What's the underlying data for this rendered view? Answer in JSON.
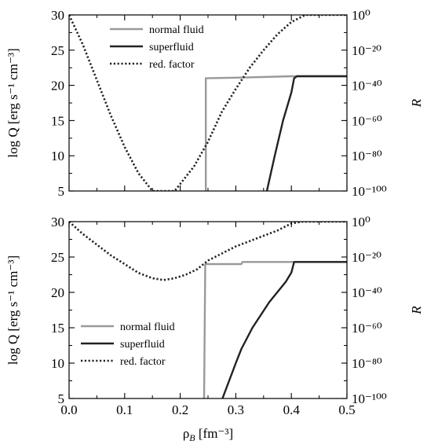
{
  "chart_data": [
    {
      "type": "line",
      "panel": "top",
      "xlabel": "",
      "ylabel": "log Q [erg s⁻¹ cm⁻³]",
      "y2label": "R",
      "xlim": [
        0.0,
        0.5
      ],
      "ylim": [
        5,
        30
      ],
      "y2lim_log10": [
        -100,
        0
      ],
      "yticks": [
        5,
        10,
        15,
        20,
        25,
        30
      ],
      "y2ticks_exponents": [
        -100,
        -80,
        -60,
        -40,
        -20,
        0
      ],
      "xticks": [
        0.0,
        0.1,
        0.2,
        0.3,
        0.4,
        0.5
      ],
      "grid": false,
      "legend_position": "top-center",
      "series": [
        {
          "name": "normal fluid",
          "color": "#999999",
          "style": "solid",
          "axis": "left",
          "x": [
            0.246,
            0.246,
            0.31,
            0.4,
            0.5
          ],
          "y": [
            5.0,
            21.0,
            21.1,
            21.3,
            21.3
          ]
        },
        {
          "name": "superfluid",
          "color": "#222222",
          "style": "solid",
          "axis": "left",
          "x": [
            0.356,
            0.37,
            0.385,
            0.4,
            0.405,
            0.41,
            0.45,
            0.5
          ],
          "y": [
            5.0,
            10.0,
            15.0,
            19.0,
            21.0,
            21.3,
            21.3,
            21.3
          ]
        },
        {
          "name": "red. factor",
          "color": "#222222",
          "style": "dotted",
          "axis": "right_log10",
          "x": [
            0.0,
            0.025,
            0.05,
            0.075,
            0.1,
            0.125,
            0.15,
            0.19,
            0.225,
            0.25,
            0.275,
            0.3,
            0.325,
            0.35,
            0.375,
            0.4,
            0.425,
            0.45,
            0.5
          ],
          "y": [
            0,
            -17,
            -37,
            -57,
            -75,
            -90,
            -100,
            -100,
            -86,
            -72,
            -55,
            -42,
            -30,
            -20,
            -11,
            -4,
            0,
            0,
            0
          ]
        }
      ]
    },
    {
      "type": "line",
      "panel": "bottom",
      "xlabel": "ρ_B [fm⁻³]",
      "ylabel": "log Q [erg s⁻¹ cm⁻³]",
      "y2label": "R",
      "xlim": [
        0.0,
        0.5
      ],
      "ylim": [
        5,
        30
      ],
      "y2lim_log10": [
        -100,
        0
      ],
      "yticks": [
        5,
        10,
        15,
        20,
        25,
        30
      ],
      "y2ticks_exponents": [
        -100,
        -80,
        -60,
        -40,
        -20,
        0
      ],
      "xticks": [
        0.0,
        0.1,
        0.2,
        0.3,
        0.4,
        0.5
      ],
      "xtick_labels": [
        "0.0",
        "0.1",
        "0.2",
        "0.3",
        "0.4",
        "0.5"
      ],
      "grid": false,
      "legend_position": "bottom-left",
      "series": [
        {
          "name": "normal fluid",
          "color": "#999999",
          "style": "solid",
          "axis": "left",
          "x": [
            0.243,
            0.245,
            0.31,
            0.312,
            0.4,
            0.5
          ],
          "y": [
            5.0,
            24.0,
            24.0,
            24.3,
            24.3,
            24.3
          ]
        },
        {
          "name": "superfluid",
          "color": "#222222",
          "style": "solid",
          "axis": "left",
          "x": [
            0.276,
            0.3,
            0.31,
            0.33,
            0.36,
            0.39,
            0.4,
            0.405,
            0.45,
            0.5
          ],
          "y": [
            5.0,
            10.0,
            12.0,
            15.0,
            18.6,
            21.5,
            22.8,
            24.3,
            24.3,
            24.3
          ]
        },
        {
          "name": "red. factor",
          "color": "#222222",
          "style": "dotted",
          "axis": "right_log10",
          "x": [
            0.0,
            0.025,
            0.05,
            0.075,
            0.1,
            0.125,
            0.15,
            0.17,
            0.19,
            0.21,
            0.23,
            0.25,
            0.275,
            0.3,
            0.325,
            0.35,
            0.375,
            0.4,
            0.42,
            0.45,
            0.5
          ],
          "y": [
            0,
            -7,
            -13,
            -19,
            -24,
            -29,
            -32,
            -33,
            -32,
            -30,
            -27,
            -22,
            -18,
            -14,
            -11,
            -8,
            -5,
            -1,
            0,
            0,
            0
          ]
        }
      ]
    }
  ]
}
